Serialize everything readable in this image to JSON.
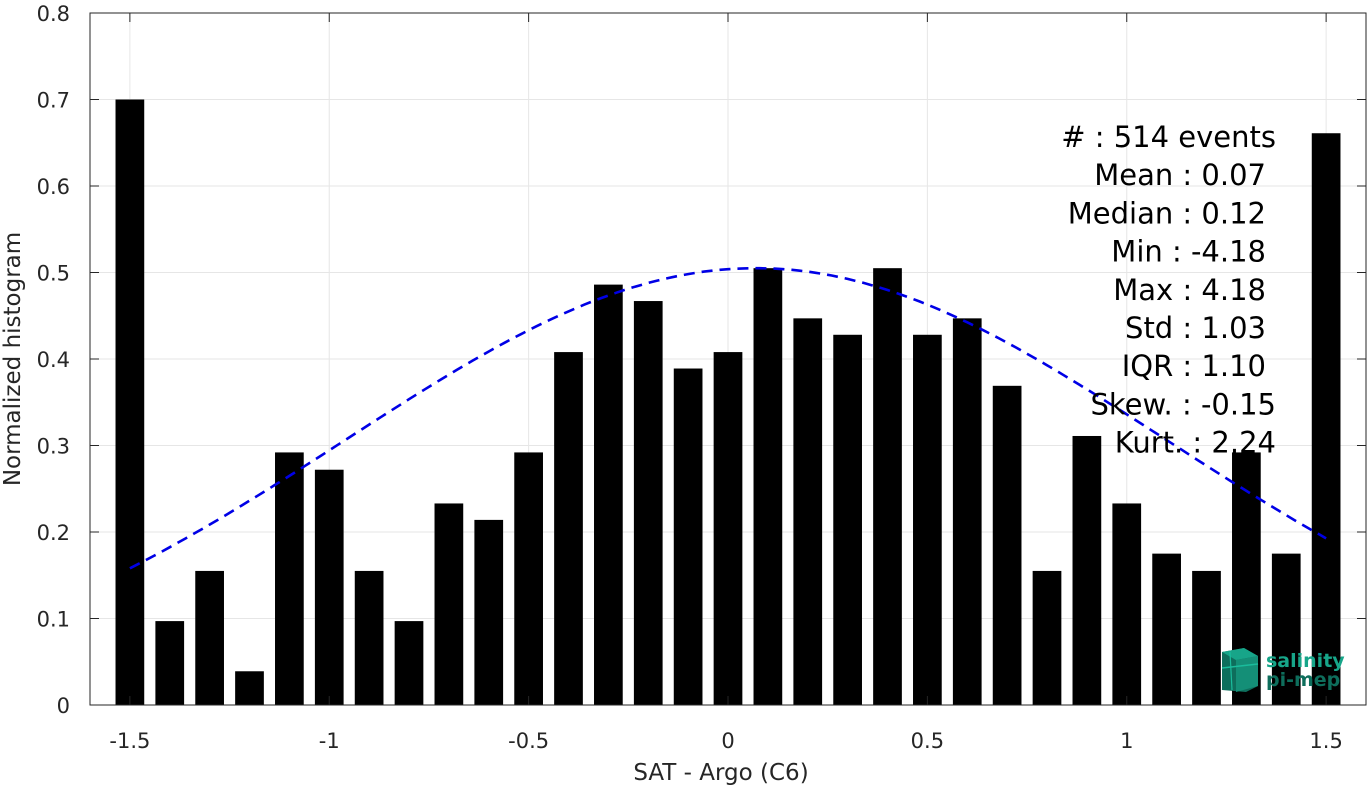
{
  "chart_data": {
    "type": "bar",
    "xlabel": "SAT - Argo (C6)",
    "ylabel": "Normalized histogram",
    "xlim": [
      -1.6,
      1.6
    ],
    "ylim": [
      0,
      0.8
    ],
    "xticks": [
      -1.5,
      -1,
      -0.5,
      0,
      0.5,
      1,
      1.5
    ],
    "xtick_labels": [
      "-1.5",
      "-1",
      "-0.5",
      "0",
      "0.5",
      "1",
      "1.5"
    ],
    "yticks": [
      0,
      0.1,
      0.2,
      0.3,
      0.4,
      0.5,
      0.6,
      0.7,
      0.8
    ],
    "ytick_labels": [
      "0",
      "0.1",
      "0.2",
      "0.3",
      "0.4",
      "0.5",
      "0.6",
      "0.7",
      "0.8"
    ],
    "grid": true,
    "bar_color": "#000000",
    "bars": {
      "x": [
        -1.5,
        -1.4,
        -1.3,
        -1.2,
        -1.1,
        -1.0,
        -0.9,
        -0.8,
        -0.7,
        -0.6,
        -0.5,
        -0.4,
        -0.3,
        -0.2,
        -0.1,
        0.0,
        0.1,
        0.2,
        0.3,
        0.4,
        0.5,
        0.6,
        0.7,
        0.8,
        0.9,
        1.0,
        1.1,
        1.2,
        1.3,
        1.4,
        1.5
      ],
      "values": [
        0.7,
        0.097,
        0.155,
        0.039,
        0.292,
        0.272,
        0.155,
        0.097,
        0.233,
        0.214,
        0.292,
        0.408,
        0.486,
        0.467,
        0.389,
        0.408,
        0.505,
        0.447,
        0.428,
        0.505,
        0.428,
        0.447,
        0.369,
        0.155,
        0.311,
        0.233,
        0.175,
        0.155,
        0.292,
        0.175,
        0.661
      ]
    },
    "fit_curve": {
      "style": "dashed",
      "color": "#0000e6",
      "x_range": [
        -1.5,
        1.5
      ],
      "mean": 0.07,
      "std": 1.03,
      "peak": 0.505
    },
    "stats": [
      {
        "label": "#  : 514 events"
      },
      {
        "label": "Mean : 0.07"
      },
      {
        "label": "Median : 0.12"
      },
      {
        "label": "Min : -4.18"
      },
      {
        "label": "Max : 4.18"
      },
      {
        "label": "Std : 1.03"
      },
      {
        "label": "IQR : 1.10"
      },
      {
        "label": "Skew. : -0.15"
      },
      {
        "label": "Kurt. : 2.24"
      }
    ]
  },
  "logo": {
    "line1": "salinity",
    "line2": "pi-mep",
    "colors": [
      "#17a589",
      "#0e6e5c"
    ]
  }
}
